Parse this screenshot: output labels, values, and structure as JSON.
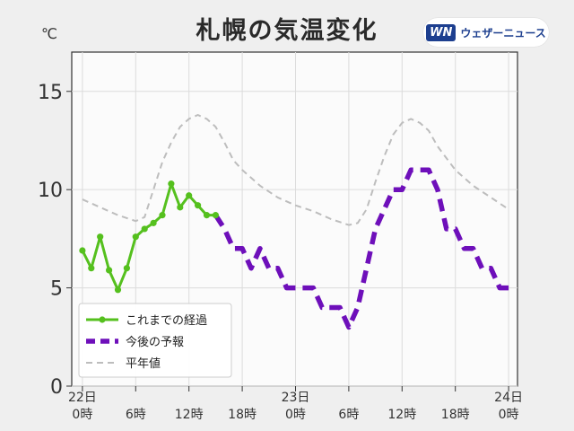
{
  "header": {
    "title": "札幌の気温変化",
    "logo_mark": "WN",
    "logo_text": "ウェザーニュース",
    "unit": "℃"
  },
  "chart_data": {
    "type": "line",
    "xlabel": "",
    "ylabel": "",
    "ylim": [
      0,
      17
    ],
    "xlim": [
      -1.2,
      49
    ],
    "yticks": [
      0,
      5,
      10,
      15
    ],
    "xticks": [
      {
        "x": 0,
        "line1": "22日",
        "line2": "0時"
      },
      {
        "x": 6,
        "line1": "",
        "line2": "6時"
      },
      {
        "x": 12,
        "line1": "",
        "line2": "12時"
      },
      {
        "x": 18,
        "line1": "",
        "line2": "18時"
      },
      {
        "x": 24,
        "line1": "23日",
        "line2": "0時"
      },
      {
        "x": 30,
        "line1": "",
        "line2": "6時"
      },
      {
        "x": 36,
        "line1": "",
        "line2": "12時"
      },
      {
        "x": 42,
        "line1": "",
        "line2": "18時"
      },
      {
        "x": 48,
        "line1": "24日",
        "line2": "0時"
      }
    ],
    "grid": true,
    "legend_position": "bottom-left",
    "series": [
      {
        "name": "これまでの経過",
        "color": "#55c01e",
        "style": "solid-markers",
        "x": [
          0,
          1,
          2,
          3,
          4,
          5,
          6,
          7,
          8,
          9,
          10,
          11,
          12,
          13,
          14,
          15
        ],
        "y": [
          6.9,
          6.0,
          7.6,
          5.9,
          4.9,
          6.0,
          7.6,
          8.0,
          8.3,
          8.7,
          10.3,
          9.1,
          9.7,
          9.2,
          8.7,
          8.7
        ]
      },
      {
        "name": "今後の予報",
        "color": "#6e0fba",
        "style": "dashed-bold",
        "x": [
          15,
          16,
          17,
          18,
          19,
          20,
          21,
          22,
          23,
          24,
          25,
          26,
          27,
          28,
          29,
          30,
          31,
          32,
          33,
          34,
          35,
          36,
          37,
          38,
          39,
          40,
          41,
          42,
          43,
          44,
          45,
          46,
          47,
          48
        ],
        "y": [
          8.7,
          8.0,
          7.0,
          7.0,
          6.0,
          7.0,
          6.0,
          6.0,
          5.0,
          5.0,
          5.0,
          5.0,
          4.0,
          4.0,
          4.0,
          3.0,
          4.0,
          6.0,
          8.0,
          9.0,
          10.0,
          10.0,
          11.0,
          11.0,
          11.0,
          10.0,
          8.0,
          8.0,
          7.0,
          7.0,
          6.0,
          6.0,
          5.0,
          5.0
        ]
      },
      {
        "name": "平年値",
        "color": "#bdbdbd",
        "style": "dashed-thin",
        "x": [
          0,
          2,
          4,
          6,
          7,
          8,
          9,
          10,
          11,
          12,
          13,
          14,
          15,
          16,
          17,
          18,
          20,
          22,
          24,
          26,
          28,
          30,
          31,
          32,
          33,
          34,
          35,
          36,
          37,
          38,
          39,
          40,
          42,
          44,
          46,
          48
        ],
        "y": [
          9.5,
          9.1,
          8.7,
          8.4,
          8.6,
          10.0,
          11.4,
          12.4,
          13.2,
          13.6,
          13.8,
          13.6,
          13.2,
          12.4,
          11.5,
          11.0,
          10.2,
          9.6,
          9.2,
          8.9,
          8.5,
          8.2,
          8.3,
          9.0,
          10.4,
          11.7,
          12.8,
          13.4,
          13.6,
          13.4,
          13.0,
          12.2,
          11.0,
          10.2,
          9.6,
          9.0
        ]
      }
    ]
  }
}
